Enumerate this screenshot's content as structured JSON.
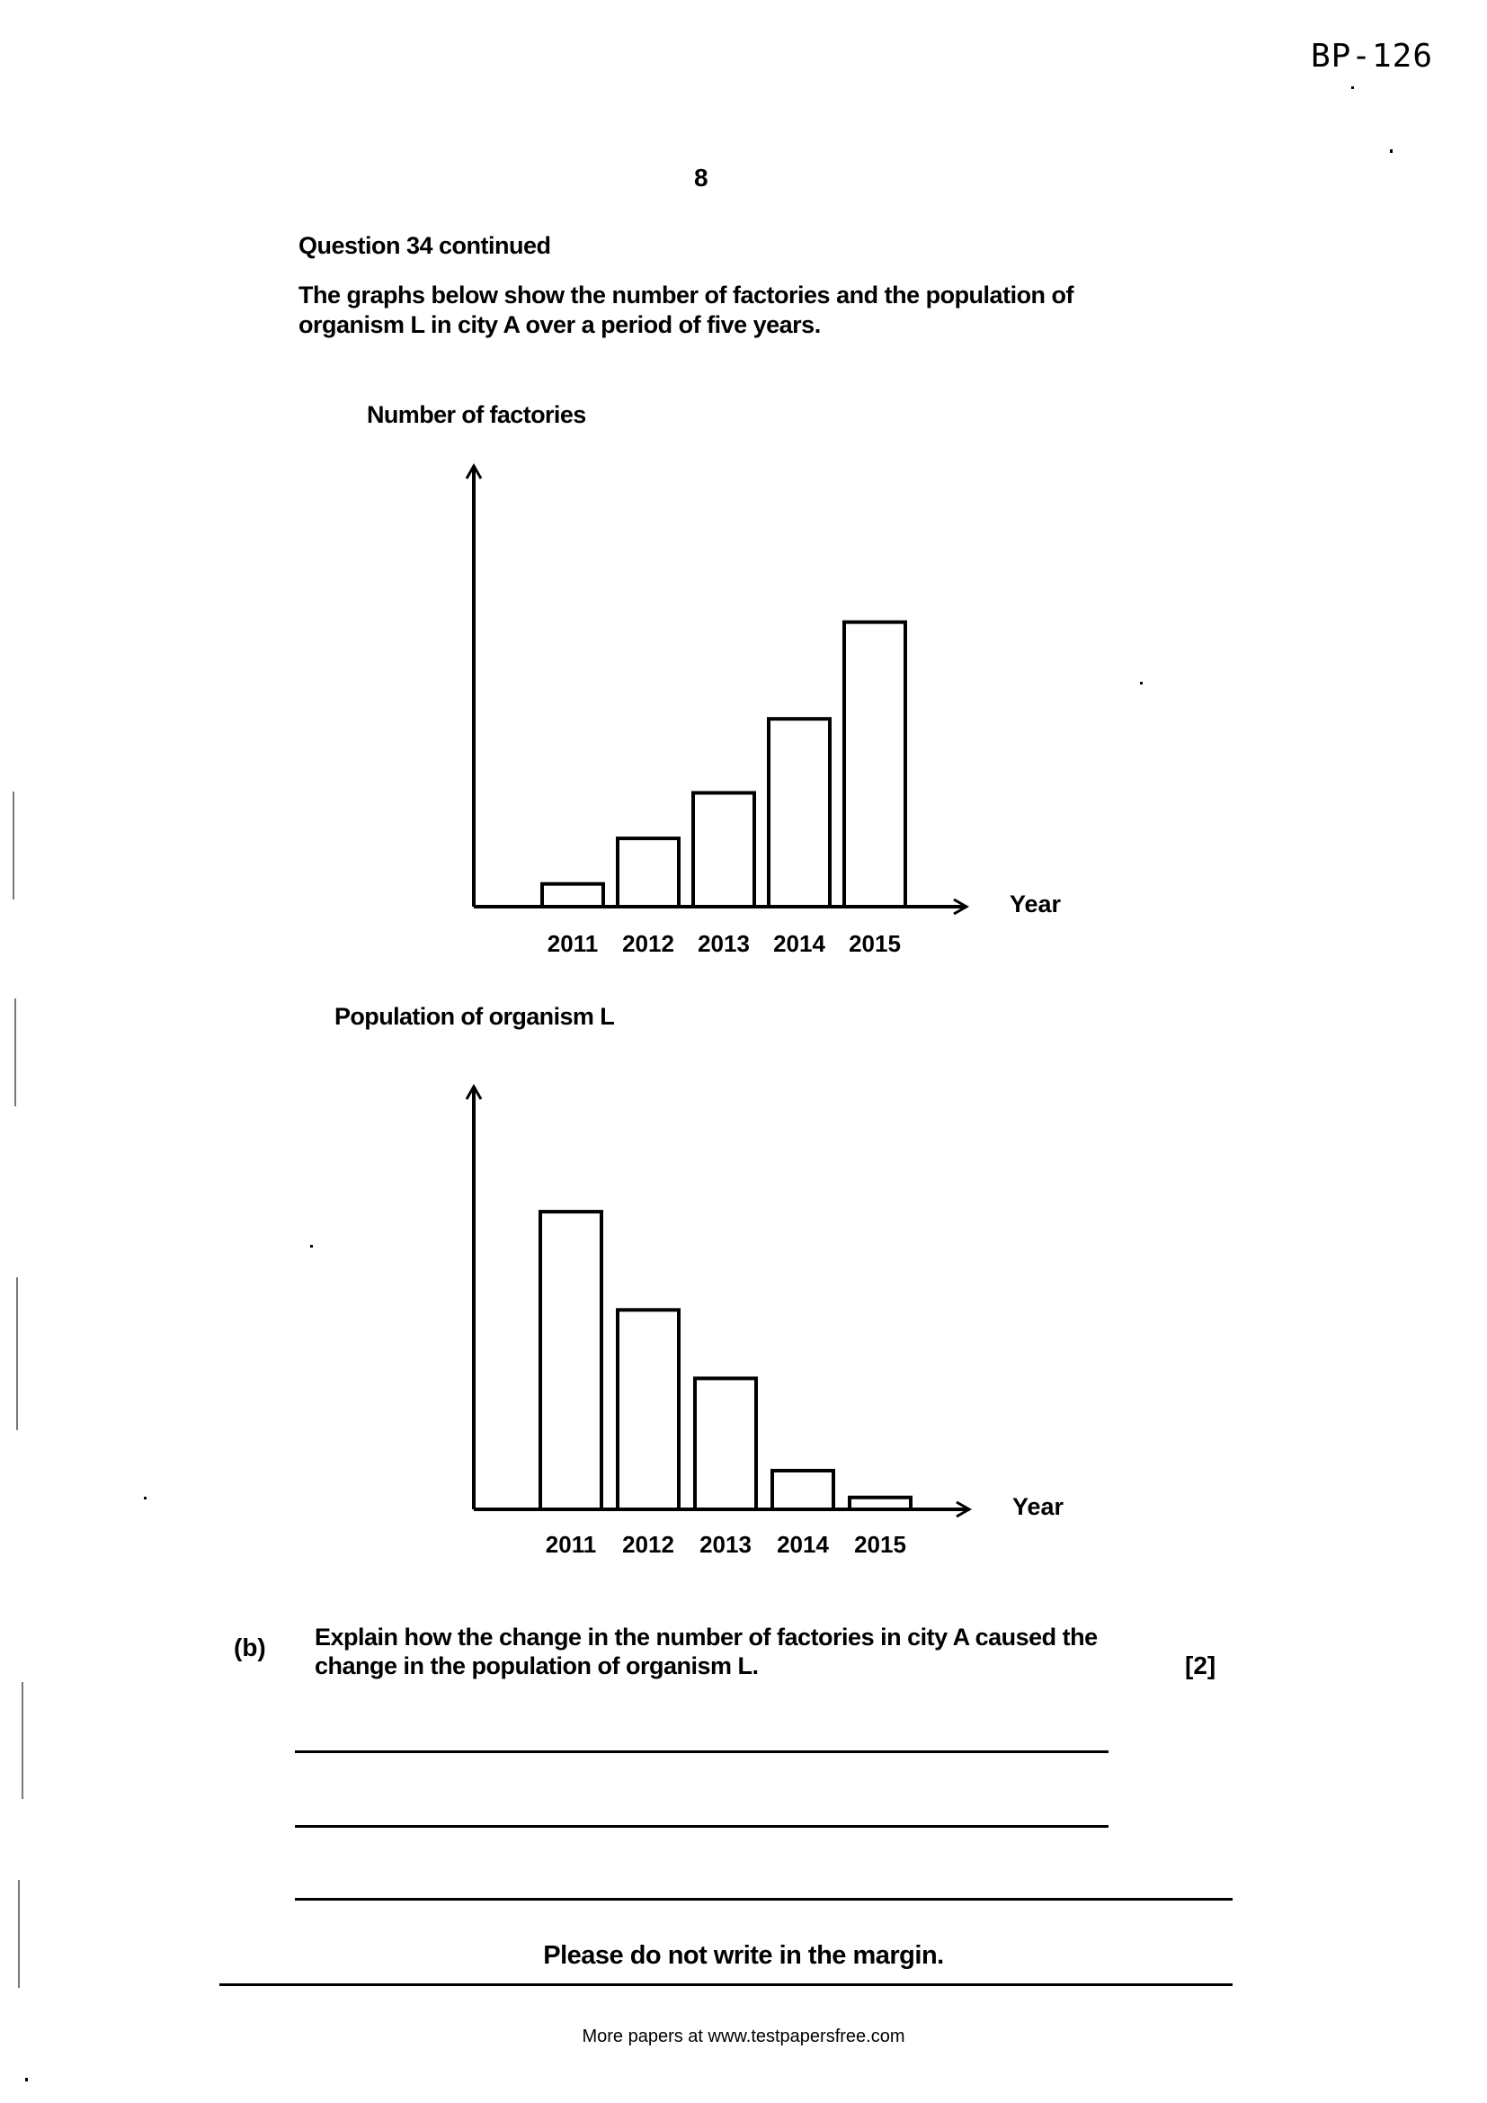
{
  "header": {
    "doc_id": "BP-126",
    "page_number": "8"
  },
  "question": {
    "heading": "Question 34 continued",
    "intro": "The graphs below show the number of factories and the population of organism L in city A over a period of five years."
  },
  "chart_data": [
    {
      "type": "bar",
      "title": "Number of factories",
      "xlabel": "Year",
      "ylabel": "",
      "categories": [
        "2011",
        "2012",
        "2013",
        "2014",
        "2015"
      ],
      "values": [
        0.08,
        0.24,
        0.4,
        0.66,
        1.0
      ],
      "ylim": [
        0,
        1.1
      ],
      "grid": false,
      "axis_ticks_y": false
    },
    {
      "type": "bar",
      "title": "Population of organism L",
      "xlabel": "Year",
      "ylabel": "",
      "categories": [
        "2011",
        "2012",
        "2013",
        "2014",
        "2015"
      ],
      "values": [
        1.0,
        0.67,
        0.44,
        0.13,
        0.04
      ],
      "ylim": [
        0,
        1.1
      ],
      "grid": false,
      "axis_ticks_y": false
    }
  ],
  "part_b": {
    "label": "(b)",
    "text": "Explain how the change in the number of factories in city A caused the change in the population of organism L.",
    "marks": "[2]"
  },
  "margin_note": "Please do not write in the margin.",
  "footer": "More papers at www.testpapersfree.com"
}
